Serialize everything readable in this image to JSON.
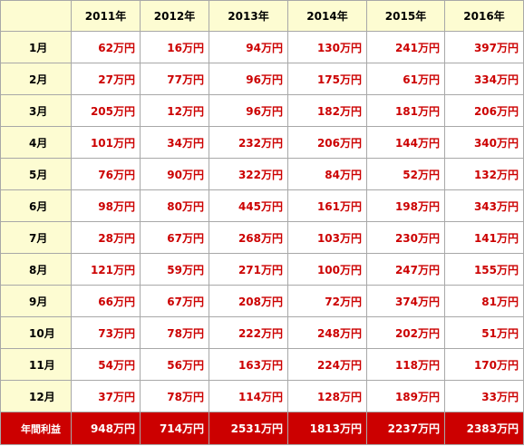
{
  "table": {
    "corner_label": "",
    "years": [
      "2011年",
      "2012年",
      "2013年",
      "2014年",
      "2015年",
      "2016年"
    ],
    "rows": [
      {
        "month": "1月",
        "values": [
          "62万円",
          "16万円",
          "94万円",
          "130万円",
          "241万円",
          "397万円"
        ]
      },
      {
        "month": "2月",
        "values": [
          "27万円",
          "77万円",
          "96万円",
          "175万円",
          "61万円",
          "334万円"
        ]
      },
      {
        "month": "3月",
        "values": [
          "205万円",
          "12万円",
          "96万円",
          "182万円",
          "181万円",
          "206万円"
        ]
      },
      {
        "month": "4月",
        "values": [
          "101万円",
          "34万円",
          "232万円",
          "206万円",
          "144万円",
          "340万円"
        ]
      },
      {
        "month": "5月",
        "values": [
          "76万円",
          "90万円",
          "322万円",
          "84万円",
          "52万円",
          "132万円"
        ]
      },
      {
        "month": "6月",
        "values": [
          "98万円",
          "80万円",
          "445万円",
          "161万円",
          "198万円",
          "343万円"
        ]
      },
      {
        "month": "7月",
        "values": [
          "28万円",
          "67万円",
          "268万円",
          "103万円",
          "230万円",
          "141万円"
        ]
      },
      {
        "month": "8月",
        "values": [
          "121万円",
          "59万円",
          "271万円",
          "100万円",
          "247万円",
          "155万円"
        ]
      },
      {
        "month": "9月",
        "values": [
          "66万円",
          "67万円",
          "208万円",
          "72万円",
          "374万円",
          "81万円"
        ]
      },
      {
        "month": "10月",
        "values": [
          "73万円",
          "78万円",
          "222万円",
          "248万円",
          "202万円",
          "51万円"
        ]
      },
      {
        "month": "11月",
        "values": [
          "54万円",
          "56万円",
          "163万円",
          "224万円",
          "118万円",
          "170万円"
        ]
      },
      {
        "month": "12月",
        "values": [
          "37万円",
          "78万円",
          "114万円",
          "128万円",
          "189万円",
          "33万円"
        ]
      }
    ],
    "total": {
      "label": "年間利益",
      "values": [
        "948万円",
        "714万円",
        "2531万円",
        "1813万円",
        "2237万円",
        "2383万円"
      ]
    }
  },
  "colors": {
    "header_bg": "#fdfcd2",
    "value_text": "#cc0000",
    "total_bg": "#cc0000",
    "total_text": "#ffffff",
    "border": "#a8a8a8"
  }
}
